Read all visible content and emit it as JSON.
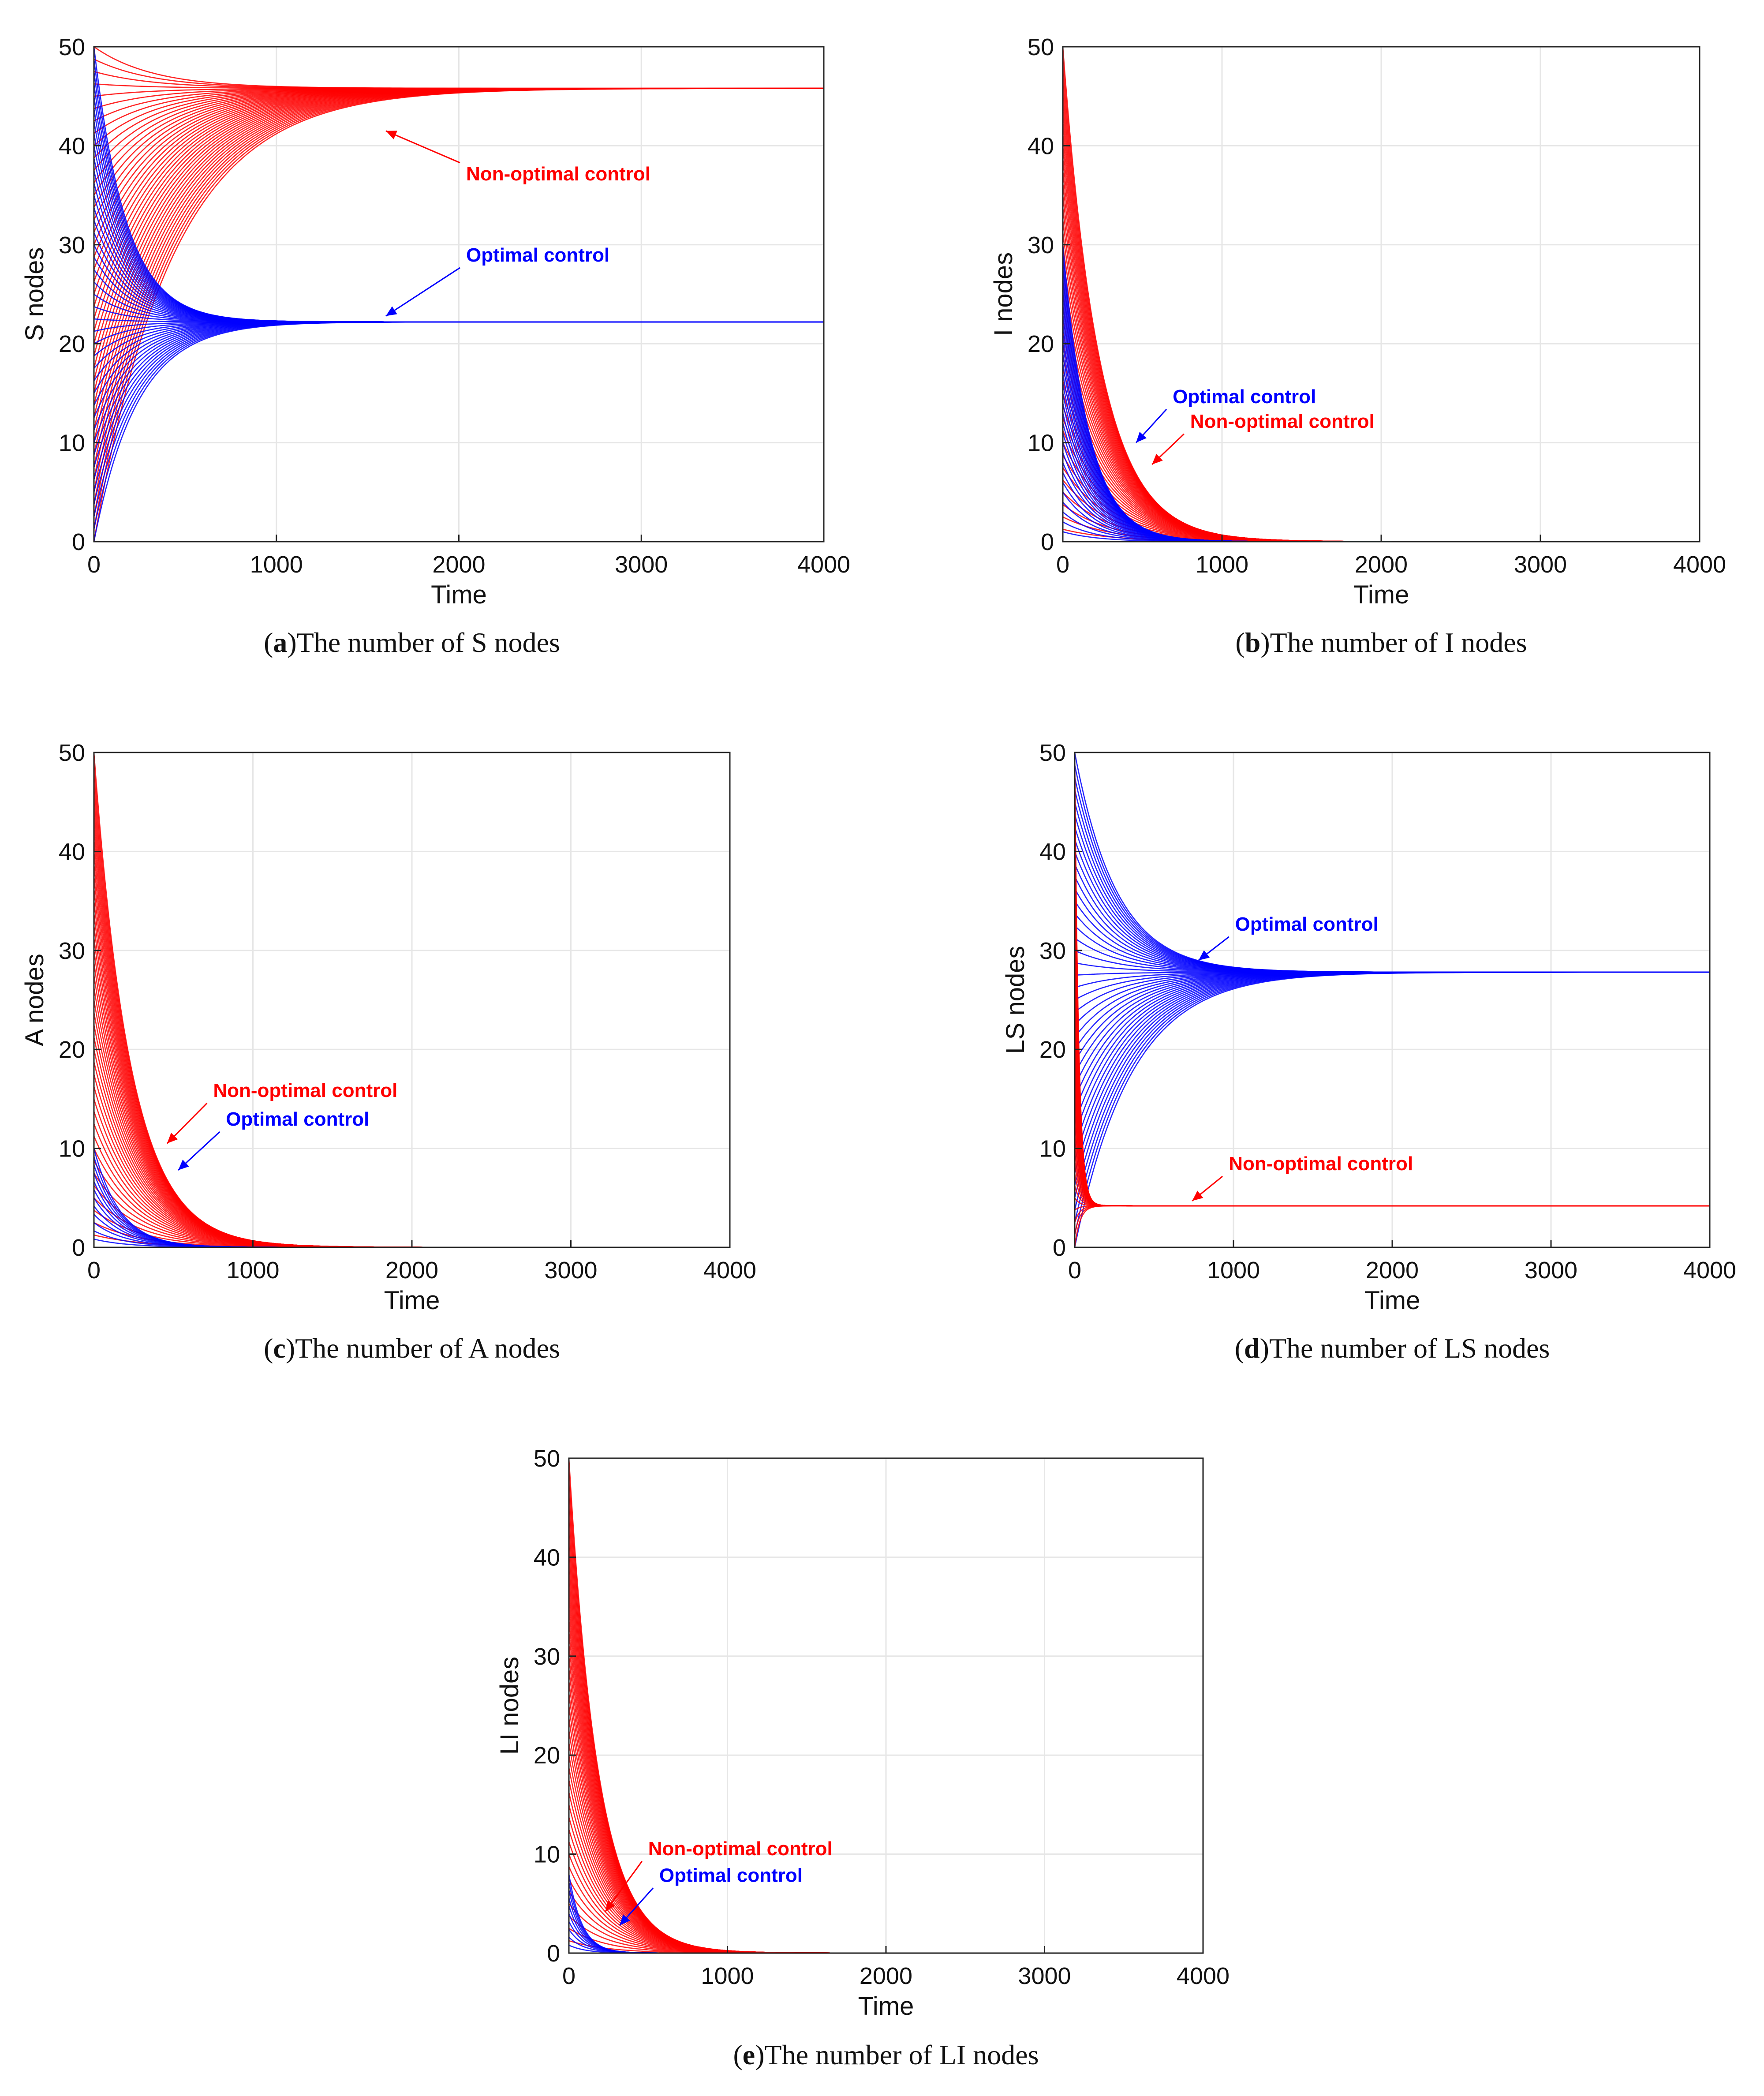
{
  "colors": {
    "optimal": "#0000ff",
    "non_optimal": "#ff0000",
    "grid": "#e6e6e6",
    "axis": "#222222"
  },
  "chart_data": [
    {
      "id": "a",
      "type": "line",
      "caption_letter": "a",
      "caption_text": "The number of S nodes",
      "xlabel": "Time",
      "ylabel": "S nodes",
      "xlim": [
        0,
        4000
      ],
      "ylim": [
        0,
        50
      ],
      "xticks": [
        "0",
        "1000",
        "2000",
        "3000",
        "4000"
      ],
      "yticks": [
        "0",
        "10",
        "20",
        "30",
        "40",
        "50"
      ],
      "grid": true,
      "series": [
        {
          "name": "Non-optimal control",
          "color": "#ff0000",
          "initial_range": [
            0,
            50
          ],
          "steady_state": 45.8,
          "rate": 0.0023,
          "count": 40
        },
        {
          "name": "Optimal control",
          "color": "#0000ff",
          "initial_range": [
            0,
            50
          ],
          "steady_state": 22.2,
          "rate": 0.0042,
          "count": 40
        }
      ],
      "annotations": [
        {
          "text": "Non-optimal control",
          "color": "#ff0000",
          "text_x": 2040,
          "text_y": 36.5,
          "arrow_to_x": 1600,
          "arrow_to_y": 41.5
        },
        {
          "text": "Optimal control",
          "color": "#0000ff",
          "text_x": 2040,
          "text_y": 28.3,
          "arrow_to_x": 1600,
          "arrow_to_y": 22.8
        }
      ]
    },
    {
      "id": "b",
      "type": "line",
      "caption_letter": "b",
      "caption_text": "The number of I nodes",
      "xlabel": "Time",
      "ylabel": "I nodes",
      "xlim": [
        0,
        4000
      ],
      "ylim": [
        0,
        50
      ],
      "xticks": [
        "0",
        "1000",
        "2000",
        "3000",
        "4000"
      ],
      "yticks": [
        "0",
        "10",
        "20",
        "30",
        "40",
        "50"
      ],
      "grid": true,
      "series": [
        {
          "name": "Non-optimal control",
          "color": "#ff0000",
          "initial_range": [
            0,
            50
          ],
          "steady_state": 0,
          "rate": 0.0032,
          "count": 40
        },
        {
          "name": "Optimal control",
          "color": "#0000ff",
          "initial_range": [
            0,
            30
          ],
          "steady_state": 0,
          "rate": 0.0045,
          "count": 30
        }
      ],
      "annotations": [
        {
          "text": "Optimal control",
          "color": "#0000ff",
          "text_x": 690,
          "text_y": 14,
          "arrow_to_x": 460,
          "arrow_to_y": 10
        },
        {
          "text": "Non-optimal control",
          "color": "#ff0000",
          "text_x": 800,
          "text_y": 11.5,
          "arrow_to_x": 560,
          "arrow_to_y": 7.8
        }
      ]
    },
    {
      "id": "c",
      "type": "line",
      "caption_letter": "c",
      "caption_text": "The number of A nodes",
      "xlabel": "Time",
      "ylabel": "A nodes",
      "xlim": [
        0,
        4000
      ],
      "ylim": [
        0,
        50
      ],
      "xticks": [
        "0",
        "1000",
        "2000",
        "3000",
        "4000"
      ],
      "yticks": [
        "0",
        "10",
        "20",
        "30",
        "40",
        "50"
      ],
      "grid": true,
      "series": [
        {
          "name": "Non-optimal control",
          "color": "#ff0000",
          "initial_range": [
            0,
            50
          ],
          "steady_state": 0,
          "rate": 0.0032,
          "count": 40
        },
        {
          "name": "Optimal control",
          "color": "#0000ff",
          "initial_range": [
            0,
            10
          ],
          "steady_state": 0,
          "rate": 0.0045,
          "count": 12
        }
      ],
      "annotations": [
        {
          "text": "Non-optimal control",
          "color": "#ff0000",
          "text_x": 750,
          "text_y": 15.2,
          "arrow_to_x": 460,
          "arrow_to_y": 10.5
        },
        {
          "text": "Optimal control",
          "color": "#0000ff",
          "text_x": 830,
          "text_y": 12.3,
          "arrow_to_x": 530,
          "arrow_to_y": 7.8
        }
      ]
    },
    {
      "id": "d",
      "type": "line",
      "caption_letter": "d",
      "caption_text": "The number of LS nodes",
      "xlabel": "Time",
      "ylabel": "LS nodes",
      "xlim": [
        0,
        4000
      ],
      "ylim": [
        0,
        50
      ],
      "xticks": [
        "0",
        "1000",
        "2000",
        "3000",
        "4000"
      ],
      "yticks": [
        "0",
        "10",
        "20",
        "30",
        "40",
        "50"
      ],
      "grid": true,
      "series": [
        {
          "name": "Optimal control",
          "color": "#0000ff",
          "initial_range": [
            0,
            50
          ],
          "steady_state": 27.8,
          "rate": 0.0028,
          "count": 40
        },
        {
          "name": "Non-optimal control",
          "color": "#ff0000",
          "initial_range": [
            0,
            50
          ],
          "steady_state": 4.2,
          "rate": 0.03,
          "count": 40
        }
      ],
      "annotations": [
        {
          "text": "Optimal control",
          "color": "#0000ff",
          "text_x": 1010,
          "text_y": 32,
          "arrow_to_x": 780,
          "arrow_to_y": 29
        },
        {
          "text": "Non-optimal control",
          "color": "#ff0000",
          "text_x": 970,
          "text_y": 7.8,
          "arrow_to_x": 740,
          "arrow_to_y": 4.7
        }
      ]
    },
    {
      "id": "e",
      "type": "line",
      "caption_letter": "e",
      "caption_text": "The number of LI nodes",
      "xlabel": "Time",
      "ylabel": "LI nodes",
      "xlim": [
        0,
        4000
      ],
      "ylim": [
        0,
        50
      ],
      "xticks": [
        "0",
        "1000",
        "2000",
        "3000",
        "4000"
      ],
      "yticks": [
        "0",
        "10",
        "20",
        "30",
        "40",
        "50"
      ],
      "grid": true,
      "series": [
        {
          "name": "Non-optimal control",
          "color": "#ff0000",
          "initial_range": [
            0,
            50
          ],
          "steady_state": 0,
          "rate": 0.004,
          "count": 40
        },
        {
          "name": "Optimal control",
          "color": "#0000ff",
          "initial_range": [
            0,
            8
          ],
          "steady_state": 0,
          "rate": 0.009,
          "count": 10
        }
      ],
      "annotations": [
        {
          "text": "Non-optimal control",
          "color": "#ff0000",
          "text_x": 500,
          "text_y": 9.9,
          "arrow_to_x": 230,
          "arrow_to_y": 4.2
        },
        {
          "text": "Optimal control",
          "color": "#0000ff",
          "text_x": 570,
          "text_y": 7.2,
          "arrow_to_x": 320,
          "arrow_to_y": 2.8
        }
      ]
    }
  ]
}
